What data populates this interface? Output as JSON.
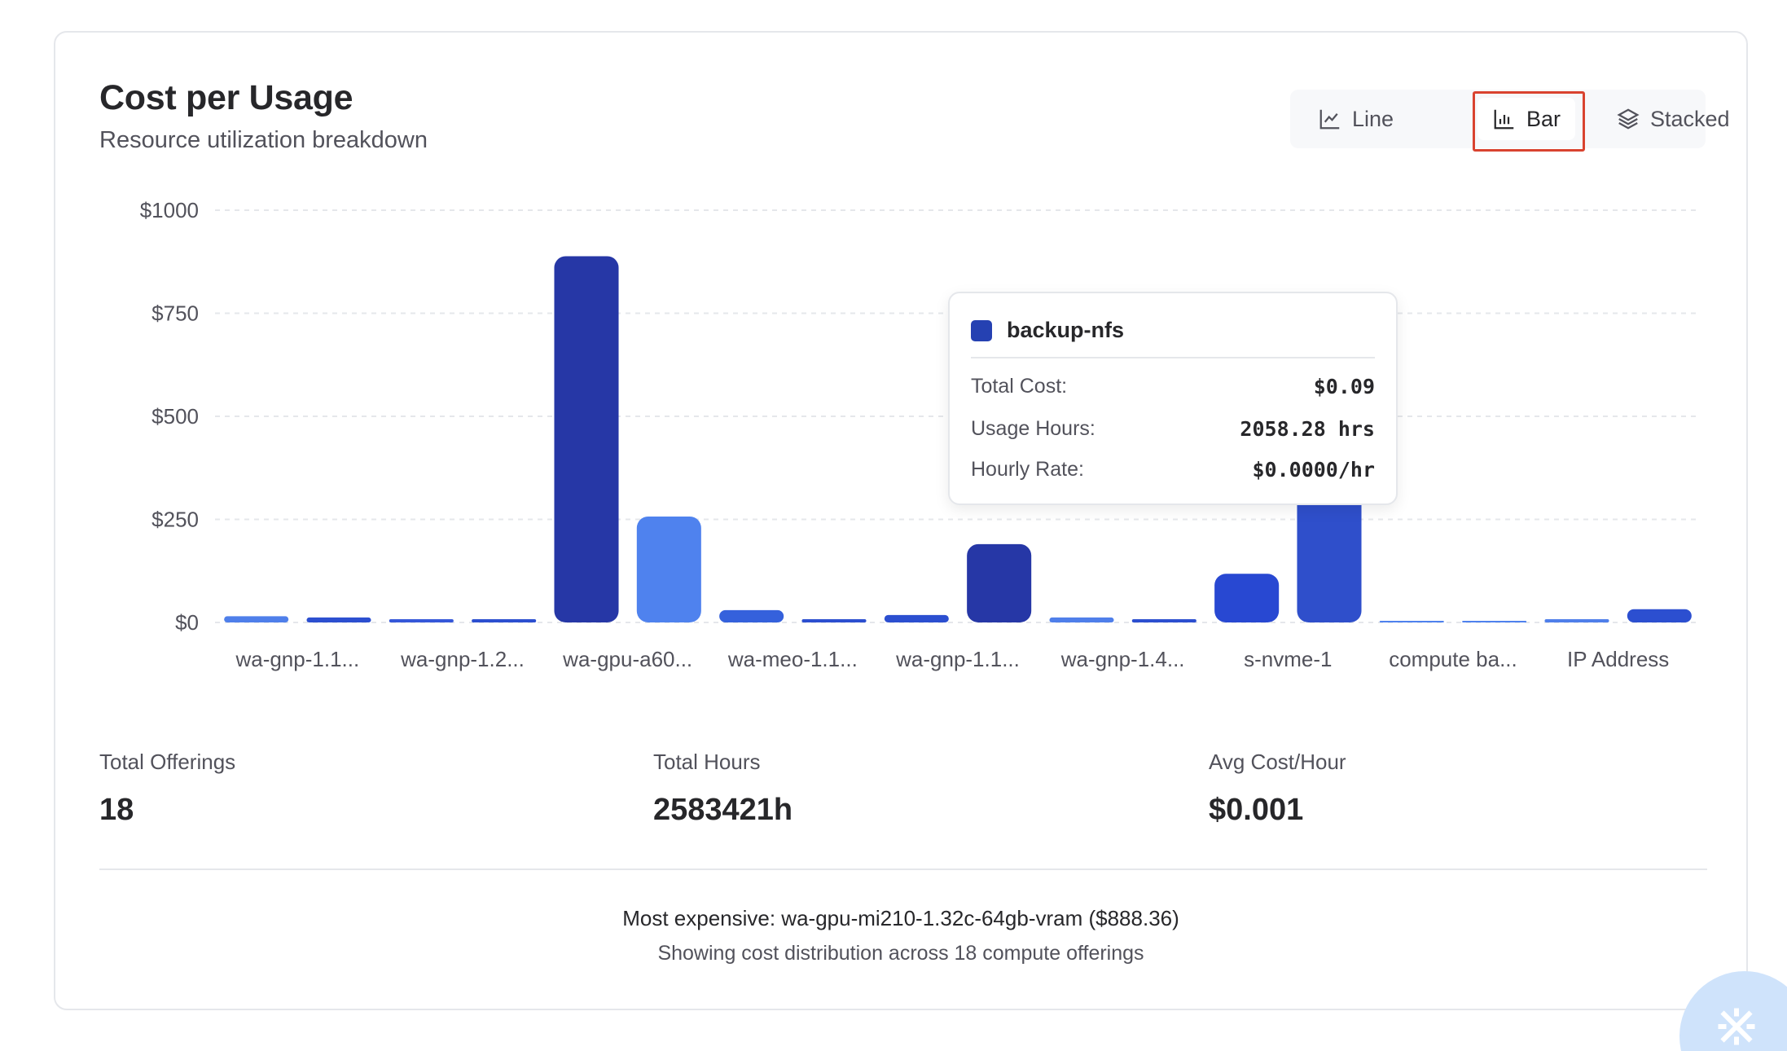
{
  "header": {
    "title": "Cost per Usage",
    "subtitle": "Resource utilization breakdown"
  },
  "view_toggle": {
    "line": "Line",
    "bar": "Bar",
    "stacked": "Stacked",
    "active": "bar"
  },
  "chart_data": {
    "type": "bar",
    "categories": [
      "wa-gnp-1.1...",
      "",
      "wa-gnp-1.2...",
      "",
      "wa-gpu-a60...",
      "",
      "wa-meo-1.1...",
      "",
      "wa-gnp-1.1...",
      "",
      "wa-gnp-1.4...",
      "",
      "s-nvme-1",
      "",
      "compute ba...",
      "",
      "IP Address",
      ""
    ],
    "values": [
      15,
      12,
      2,
      5,
      888.36,
      257,
      30,
      3,
      18,
      190,
      12,
      5,
      118,
      330,
      0,
      0,
      2,
      32
    ],
    "colors": [
      "#4f7fea",
      "#2c4fd0",
      "#3658d9",
      "#2c4fd0",
      "#2637a6",
      "#4f82ee",
      "#3561dc",
      "#2c4fd0",
      "#2c4fd0",
      "#2637a6",
      "#4f7fea",
      "#2c4fd0",
      "#2848d2",
      "#2f4fcb",
      "#4f82ee",
      "#4f82ee",
      "#4f7fea",
      "#2c4fd0"
    ],
    "y_ticks": [
      "$0",
      "$250",
      "$500",
      "$750",
      "$1000"
    ],
    "ylim": [
      0,
      1000
    ],
    "grid": true,
    "title": "",
    "xlabel": "",
    "ylabel": ""
  },
  "tooltip": {
    "name": "backup-nfs",
    "swatch_color": "#2541b2",
    "rows": [
      {
        "label": "Total Cost:",
        "value": "$0.09"
      },
      {
        "label": "Usage Hours:",
        "value": "2058.28 hrs"
      },
      {
        "label": "Hourly Rate:",
        "value": "$0.0000/hr"
      }
    ]
  },
  "stats": [
    {
      "label": "Total Offerings",
      "value": "18"
    },
    {
      "label": "Total Hours",
      "value": "2583421h"
    },
    {
      "label": "Avg Cost/Hour",
      "value": "$0.001"
    }
  ],
  "footer": {
    "most_expensive": "Most expensive: wa-gpu-mi210-1.32c-64gb-vram ($888.36)",
    "note": "Showing cost distribution across 18 compute offerings"
  }
}
